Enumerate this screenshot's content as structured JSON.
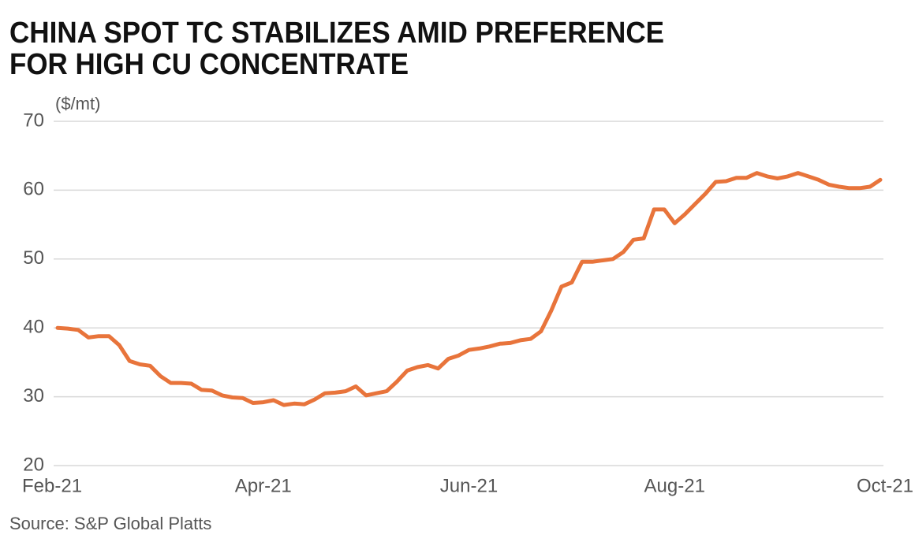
{
  "chart_data": {
    "type": "line",
    "title": [
      "CHINA SPOT TC STABILIZES AMID PREFERENCE",
      "FOR HIGH CU CONCENTRATE"
    ],
    "y_label": "($/mt)",
    "source": "Source: S&P Global Platts",
    "categories": [
      "Feb-21",
      null,
      null,
      null,
      null,
      null,
      null,
      null,
      null,
      null,
      null,
      null,
      null,
      null,
      null,
      null,
      null,
      null,
      null,
      null,
      "Apr-21",
      null,
      null,
      null,
      null,
      null,
      null,
      null,
      null,
      null,
      null,
      null,
      null,
      null,
      null,
      null,
      null,
      null,
      null,
      null,
      "Jun-21",
      null,
      null,
      null,
      null,
      null,
      null,
      null,
      null,
      null,
      null,
      null,
      null,
      null,
      null,
      null,
      null,
      null,
      null,
      null,
      "Aug-21",
      null,
      null,
      null,
      null,
      null,
      null,
      null,
      null,
      null,
      null,
      null,
      null,
      null,
      null,
      null,
      null,
      null,
      null,
      null,
      "Oct-21"
    ],
    "values": [
      40.0,
      39.9,
      39.7,
      38.6,
      38.8,
      38.8,
      37.5,
      35.2,
      34.7,
      34.5,
      33.0,
      32.0,
      32.0,
      31.9,
      31.0,
      30.9,
      30.2,
      29.9,
      29.8,
      29.1,
      29.2,
      29.5,
      28.8,
      29.0,
      28.9,
      29.6,
      30.5,
      30.6,
      30.8,
      31.5,
      30.2,
      30.5,
      30.8,
      32.2,
      33.8,
      34.3,
      34.6,
      34.1,
      35.5,
      36.0,
      36.8,
      37.0,
      37.3,
      37.7,
      37.8,
      38.2,
      38.4,
      39.5,
      42.5,
      46.0,
      46.6,
      49.6,
      49.6,
      49.8,
      50.0,
      51.0,
      52.8,
      53.0,
      57.2,
      57.2,
      55.2,
      56.5,
      58.0,
      59.5,
      61.2,
      61.3,
      61.8,
      61.8,
      62.5,
      62.0,
      61.7,
      62.0,
      62.5,
      62.0,
      61.5,
      60.8,
      60.5,
      60.3,
      60.3,
      60.5,
      61.5
    ],
    "color": "#e8743b",
    "ylim": [
      20,
      70
    ],
    "yticks": [
      20,
      30,
      40,
      50,
      60,
      70
    ],
    "grid": true
  }
}
